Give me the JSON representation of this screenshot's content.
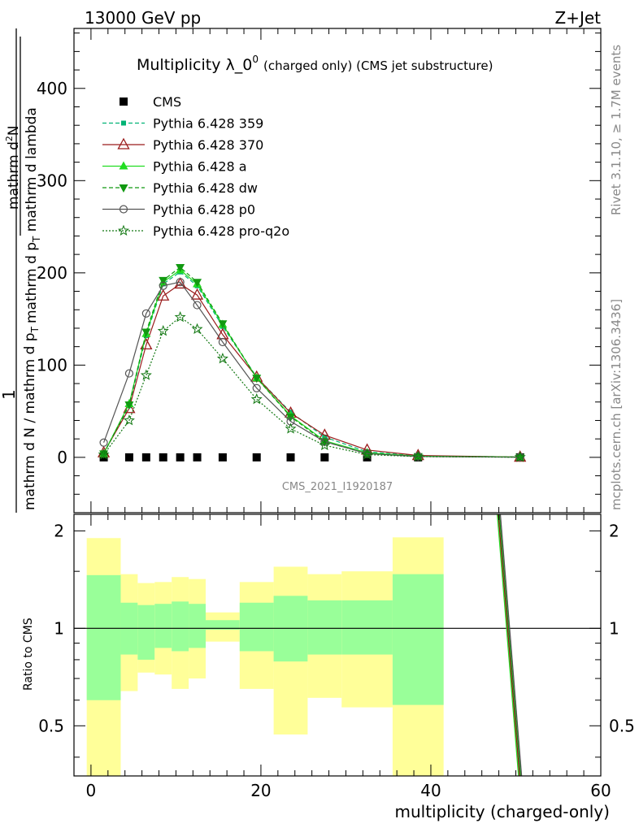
{
  "header": {
    "left": "13000 GeV pp",
    "right": "Z+Jet"
  },
  "side_labels": {
    "right_top": "Rivet 3.1.10, ≥ 1.7M events",
    "right_bottom": "mcplots.cern.ch [arXiv:1306.3436]"
  },
  "chart_data": [
    {
      "type": "line",
      "title": "Multiplicity λ_0",
      "title_sup": "0",
      "title_suffix": "(charged only) (CMS jet substructure)",
      "watermark": "CMS_2021_I1920187",
      "ylabel_fraction_numer": "1",
      "ylabel_fraction_denom": "mathrm d N / mathrm d p",
      "ylabel_fraction_denom_sub": "T",
      "ylabel_deriv_numer": "mathrm d",
      "ylabel_deriv_numer_sup": "2",
      "ylabel_deriv_numer_tail": "N",
      "ylabel_deriv_denom": "mathrm d p",
      "ylabel_deriv_denom_sub": "T",
      "ylabel_deriv_denom_tail": " mathrm d lambda",
      "xlim": [
        -2,
        60
      ],
      "ylim": [
        -60,
        465
      ],
      "y_ticks": [
        0,
        100,
        200,
        300,
        400
      ],
      "y_tick_labels": [
        "0",
        "100",
        "200",
        "300",
        "400"
      ],
      "legend_position": "top-left",
      "series": [
        {
          "name": "CMS",
          "color": "#000000",
          "marker": "square",
          "line": "none",
          "x": [
            1.5,
            4.5,
            6.5,
            8.5,
            10.5,
            12.5,
            15.5,
            19.5,
            23.5,
            27.5,
            32.5,
            38.5,
            50.5
          ],
          "y": [
            0,
            0,
            0,
            0,
            0,
            0,
            0,
            0,
            0,
            0,
            0,
            0,
            0
          ]
        },
        {
          "name": "Pythia 6.428 359",
          "color": "#00b374",
          "marker": "square-small",
          "line": "dashed",
          "x": [
            1.5,
            4.5,
            6.5,
            8.5,
            10.5,
            12.5,
            15.5,
            19.5,
            23.5,
            27.5,
            32.5,
            38.5,
            50.5
          ],
          "y": [
            4,
            56,
            132,
            188,
            201,
            186,
            142,
            87,
            49,
            22,
            6,
            1.5,
            0.5
          ]
        },
        {
          "name": "Pythia 6.428 370",
          "color": "#9a1b1b",
          "marker": "triangle-open",
          "line": "solid",
          "x": [
            1.5,
            4.5,
            6.5,
            8.5,
            10.5,
            12.5,
            15.5,
            19.5,
            23.5,
            27.5,
            32.5,
            38.5,
            50.5
          ],
          "y": [
            5,
            53,
            122,
            175,
            188,
            176,
            133,
            87,
            48,
            24,
            8,
            2,
            0.3
          ]
        },
        {
          "name": "Pythia 6.428 a",
          "color": "#22dd22",
          "marker": "triangle",
          "line": "solid",
          "x": [
            1.5,
            4.5,
            6.5,
            8.5,
            10.5,
            12.5,
            15.5,
            19.5,
            23.5,
            27.5,
            32.5,
            38.5,
            50.5
          ],
          "y": [
            4,
            58,
            134,
            190,
            203,
            188,
            144,
            86,
            45,
            18,
            5,
            1.2,
            0.3
          ]
        },
        {
          "name": "Pythia 6.428 dw",
          "color": "#119911",
          "marker": "triangle-down",
          "line": "dashed",
          "x": [
            1.5,
            4.5,
            6.5,
            8.5,
            10.5,
            12.5,
            15.5,
            19.5,
            23.5,
            27.5,
            32.5,
            38.5,
            50.5
          ],
          "y": [
            4,
            57,
            136,
            192,
            206,
            190,
            145,
            86,
            44,
            17,
            4,
            1,
            0.2
          ]
        },
        {
          "name": "Pythia 6.428 p0",
          "color": "#555555",
          "marker": "circle-open",
          "line": "solid",
          "x": [
            1.5,
            4.5,
            6.5,
            8.5,
            10.5,
            12.5,
            15.5,
            19.5,
            23.5,
            27.5,
            32.5,
            38.5,
            50.5
          ],
          "y": [
            16,
            91,
            156,
            186,
            190,
            165,
            125,
            75,
            39,
            17,
            4,
            1,
            0.2
          ]
        },
        {
          "name": "Pythia 6.428 pro-q2o",
          "color": "#117711",
          "marker": "star",
          "line": "dotted",
          "x": [
            1.5,
            4.5,
            6.5,
            8.5,
            10.5,
            12.5,
            15.5,
            19.5,
            23.5,
            27.5,
            32.5,
            38.5,
            50.5
          ],
          "y": [
            3,
            40,
            89,
            137,
            152,
            139,
            107,
            63,
            31,
            13,
            3,
            0.8,
            0.2
          ]
        }
      ]
    },
    {
      "type": "area",
      "ylabel": "Ratio to CMS",
      "xlabel": "multiplicity (charged-only)",
      "xlim": [
        -2,
        60
      ],
      "ylim": [
        0.35,
        2.25
      ],
      "x_ticks": [
        0,
        20,
        40,
        60
      ],
      "x_tick_labels": [
        "0",
        "20",
        "40",
        "60"
      ],
      "y_ticks": [
        0.5,
        1,
        2
      ],
      "y_tick_labels": [
        "0.5",
        "1",
        "2"
      ],
      "bands": {
        "x_edges": [
          -0.5,
          3.5,
          5.5,
          7.5,
          9.5,
          11.5,
          13.5,
          17.5,
          21.5,
          25.5,
          29.5,
          35.5,
          41.5
        ],
        "green_low": [
          0.6,
          0.83,
          0.8,
          0.87,
          0.85,
          0.87,
          0.99,
          0.85,
          0.79,
          0.83,
          0.83,
          0.58
        ],
        "green_high": [
          1.46,
          1.2,
          1.18,
          1.19,
          1.21,
          1.19,
          1.06,
          1.2,
          1.26,
          1.22,
          1.22,
          1.47
        ],
        "yellow_low": [
          0.3,
          0.64,
          0.73,
          0.72,
          0.65,
          0.7,
          0.91,
          0.65,
          0.47,
          0.61,
          0.57,
          0.3
        ],
        "yellow_high": [
          1.9,
          1.47,
          1.38,
          1.39,
          1.44,
          1.42,
          1.12,
          1.39,
          1.55,
          1.47,
          1.5,
          1.91
        ],
        "green_color": "#99ff99",
        "yellow_color": "#ffff99"
      },
      "ratio_lines": {
        "x": [
          48.0,
          50.5
        ],
        "y_top": 2.3,
        "y_bottom": 0.3,
        "colors": [
          "#22dd22",
          "#9a1b1b",
          "#119911",
          "#555555"
        ]
      },
      "reference_line": 1
    }
  ]
}
